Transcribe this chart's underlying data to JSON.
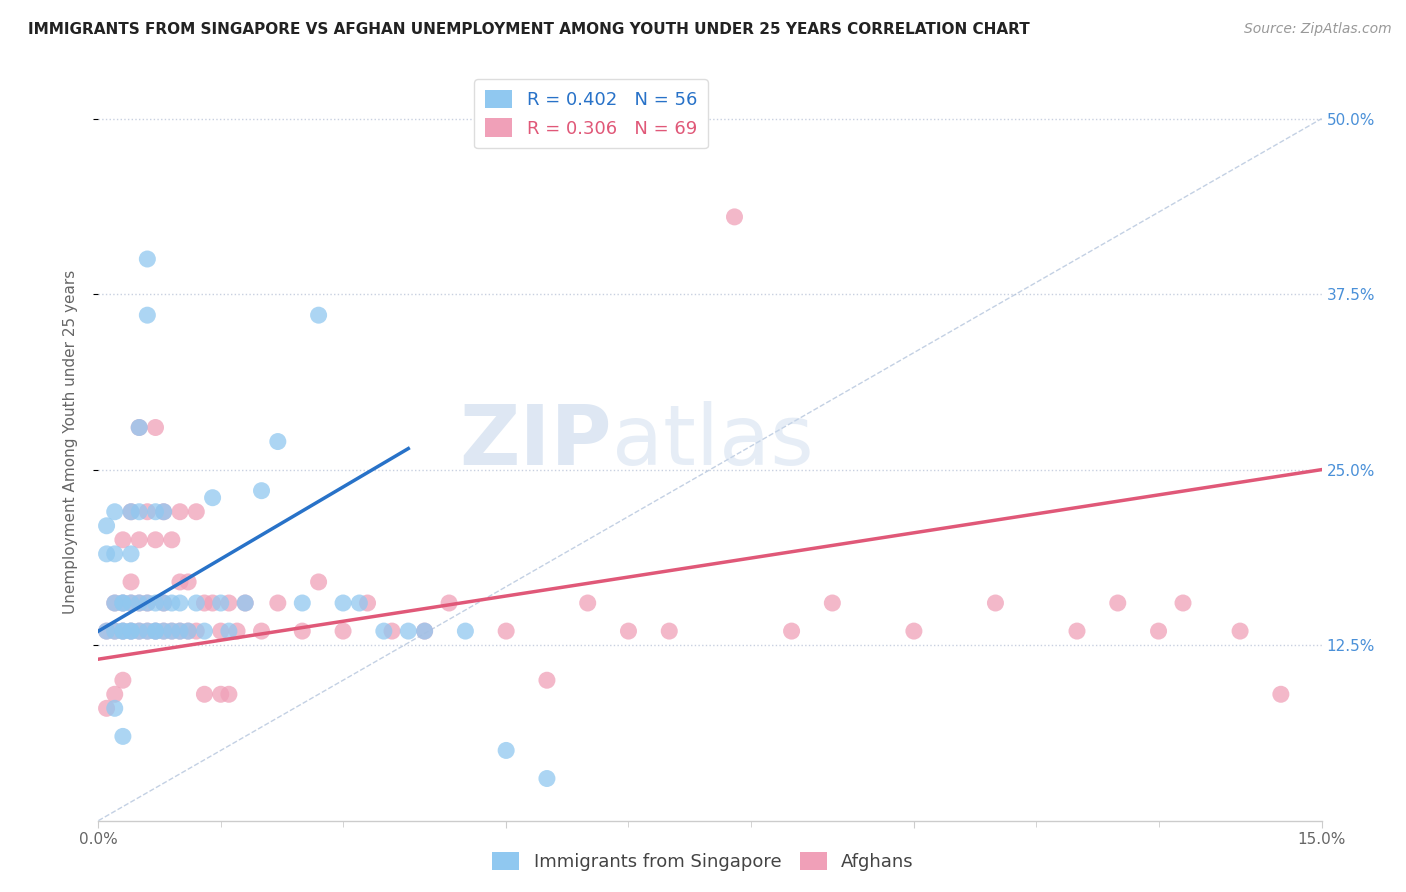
{
  "title": "IMMIGRANTS FROM SINGAPORE VS AFGHAN UNEMPLOYMENT AMONG YOUTH UNDER 25 YEARS CORRELATION CHART",
  "source": "Source: ZipAtlas.com",
  "ylabel": "Unemployment Among Youth under 25 years",
  "xlim": [
    0.0,
    0.15
  ],
  "ylim": [
    0.0,
    0.54
  ],
  "ytick_positions": [
    0.125,
    0.25,
    0.375,
    0.5
  ],
  "ytick_labels": [
    "12.5%",
    "25.0%",
    "37.5%",
    "50.0%"
  ],
  "blue_color": "#90C8F0",
  "pink_color": "#F0A0B8",
  "blue_trend_color": "#2872C8",
  "pink_trend_color": "#E05878",
  "blue_label": "Immigrants from Singapore",
  "pink_label": "Afghans",
  "blue_R": "0.402",
  "blue_N": "56",
  "pink_R": "0.306",
  "pink_N": "69",
  "blue_scatter_x": [
    0.001,
    0.001,
    0.001,
    0.002,
    0.002,
    0.002,
    0.002,
    0.002,
    0.003,
    0.003,
    0.003,
    0.003,
    0.003,
    0.004,
    0.004,
    0.004,
    0.004,
    0.004,
    0.005,
    0.005,
    0.005,
    0.005,
    0.006,
    0.006,
    0.006,
    0.006,
    0.007,
    0.007,
    0.007,
    0.007,
    0.008,
    0.008,
    0.008,
    0.009,
    0.009,
    0.01,
    0.01,
    0.011,
    0.012,
    0.013,
    0.014,
    0.015,
    0.016,
    0.018,
    0.02,
    0.022,
    0.025,
    0.027,
    0.03,
    0.032,
    0.035,
    0.038,
    0.04,
    0.045,
    0.05,
    0.055
  ],
  "blue_scatter_y": [
    0.21,
    0.19,
    0.135,
    0.22,
    0.19,
    0.155,
    0.135,
    0.08,
    0.155,
    0.155,
    0.135,
    0.135,
    0.06,
    0.22,
    0.19,
    0.155,
    0.135,
    0.135,
    0.28,
    0.22,
    0.155,
    0.135,
    0.4,
    0.36,
    0.155,
    0.135,
    0.22,
    0.155,
    0.135,
    0.135,
    0.22,
    0.155,
    0.135,
    0.155,
    0.135,
    0.155,
    0.135,
    0.135,
    0.155,
    0.135,
    0.23,
    0.155,
    0.135,
    0.155,
    0.235,
    0.27,
    0.155,
    0.36,
    0.155,
    0.155,
    0.135,
    0.135,
    0.135,
    0.135,
    0.05,
    0.03
  ],
  "pink_scatter_x": [
    0.001,
    0.001,
    0.002,
    0.002,
    0.002,
    0.003,
    0.003,
    0.003,
    0.003,
    0.004,
    0.004,
    0.004,
    0.004,
    0.005,
    0.005,
    0.005,
    0.005,
    0.006,
    0.006,
    0.006,
    0.007,
    0.007,
    0.007,
    0.008,
    0.008,
    0.008,
    0.009,
    0.009,
    0.01,
    0.01,
    0.01,
    0.011,
    0.011,
    0.012,
    0.012,
    0.013,
    0.013,
    0.014,
    0.015,
    0.015,
    0.016,
    0.016,
    0.017,
    0.018,
    0.02,
    0.022,
    0.025,
    0.027,
    0.03,
    0.033,
    0.036,
    0.04,
    0.043,
    0.05,
    0.055,
    0.06,
    0.065,
    0.07,
    0.078,
    0.085,
    0.09,
    0.1,
    0.11,
    0.12,
    0.125,
    0.13,
    0.133,
    0.14,
    0.145
  ],
  "pink_scatter_y": [
    0.135,
    0.08,
    0.155,
    0.135,
    0.09,
    0.2,
    0.155,
    0.135,
    0.1,
    0.22,
    0.17,
    0.155,
    0.135,
    0.28,
    0.2,
    0.155,
    0.135,
    0.22,
    0.155,
    0.135,
    0.28,
    0.2,
    0.135,
    0.22,
    0.155,
    0.135,
    0.2,
    0.135,
    0.22,
    0.17,
    0.135,
    0.17,
    0.135,
    0.22,
    0.135,
    0.155,
    0.09,
    0.155,
    0.135,
    0.09,
    0.155,
    0.09,
    0.135,
    0.155,
    0.135,
    0.155,
    0.135,
    0.17,
    0.135,
    0.155,
    0.135,
    0.135,
    0.155,
    0.135,
    0.1,
    0.155,
    0.135,
    0.135,
    0.43,
    0.135,
    0.155,
    0.135,
    0.155,
    0.135,
    0.155,
    0.135,
    0.155,
    0.135,
    0.09
  ],
  "blue_trend_x": [
    0.0,
    0.038
  ],
  "blue_trend_y": [
    0.135,
    0.265
  ],
  "pink_trend_x": [
    0.0,
    0.15
  ],
  "pink_trend_y": [
    0.115,
    0.25
  ],
  "ref_line_x": [
    0.0,
    0.15
  ],
  "ref_line_y": [
    0.0,
    0.5
  ],
  "watermark_zip": "ZIP",
  "watermark_atlas": "atlas",
  "title_fontsize": 11,
  "source_fontsize": 10,
  "ylabel_fontsize": 11,
  "tick_fontsize": 11,
  "legend_fontsize": 13
}
